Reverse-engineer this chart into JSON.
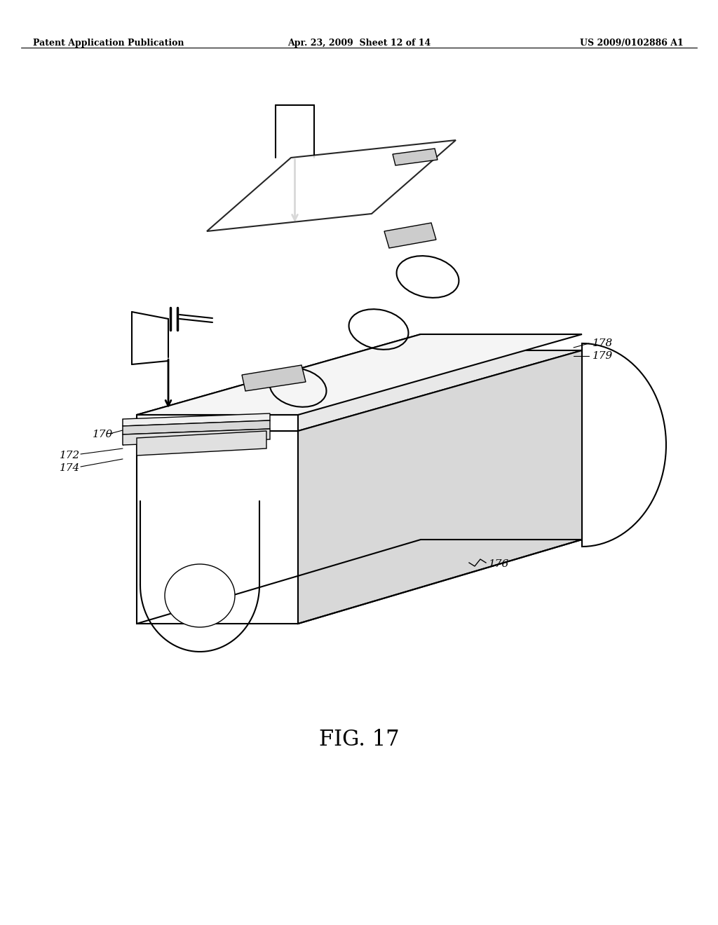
{
  "title": "FIG. 17",
  "header_left": "Patent Application Publication",
  "header_mid": "Apr. 23, 2009  Sheet 12 of 14",
  "header_right": "US 2009/0102886 A1",
  "background_color": "#ffffff",
  "line_color": "#000000",
  "label_170": "170",
  "label_172": "172",
  "label_174": "174",
  "label_176": "176",
  "label_178": "178",
  "label_179": "179",
  "fig_label": "FIG. 17"
}
